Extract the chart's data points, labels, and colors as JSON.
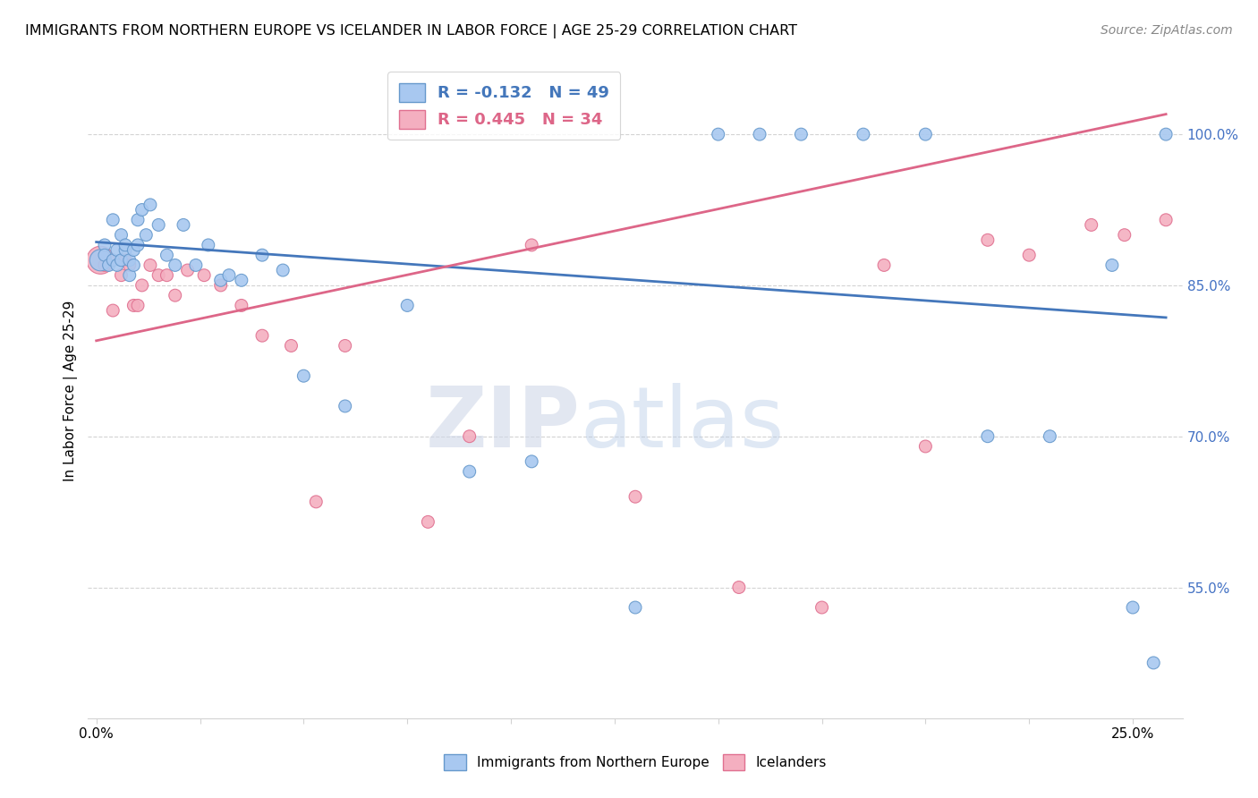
{
  "title": "IMMIGRANTS FROM NORTHERN EUROPE VS ICELANDER IN LABOR FORCE | AGE 25-29 CORRELATION CHART",
  "source": "Source: ZipAtlas.com",
  "ylabel": "In Labor Force | Age 25-29",
  "xmin": -0.002,
  "xmax": 0.262,
  "ymin": 0.42,
  "ymax": 1.07,
  "xticks": [
    0.0,
    0.025,
    0.05,
    0.075,
    0.1,
    0.125,
    0.15,
    0.175,
    0.2,
    0.225,
    0.25
  ],
  "xticklabels_show": {
    "0.0": "0.0%",
    "0.25": "25.0%"
  },
  "yticks": [
    0.55,
    0.7,
    0.85,
    1.0
  ],
  "yticklabels": [
    "55.0%",
    "70.0%",
    "85.0%",
    "100.0%"
  ],
  "blue_R": -0.132,
  "blue_N": 49,
  "pink_R": 0.445,
  "pink_N": 34,
  "blue_color": "#a8c8f0",
  "pink_color": "#f4afc0",
  "blue_edge_color": "#6699cc",
  "pink_edge_color": "#e07090",
  "blue_line_color": "#4477bb",
  "pink_line_color": "#dd6688",
  "watermark_color": "#d0dff0",
  "blue_x": [
    0.001,
    0.002,
    0.002,
    0.003,
    0.004,
    0.004,
    0.005,
    0.005,
    0.006,
    0.006,
    0.007,
    0.007,
    0.008,
    0.008,
    0.009,
    0.009,
    0.01,
    0.01,
    0.011,
    0.012,
    0.013,
    0.015,
    0.017,
    0.019,
    0.021,
    0.024,
    0.027,
    0.03,
    0.032,
    0.035,
    0.04,
    0.045,
    0.05,
    0.06,
    0.075,
    0.09,
    0.105,
    0.13,
    0.15,
    0.16,
    0.17,
    0.185,
    0.2,
    0.215,
    0.23,
    0.245,
    0.25,
    0.255,
    0.258
  ],
  "blue_y": [
    0.875,
    0.89,
    0.88,
    0.87,
    0.915,
    0.875,
    0.885,
    0.87,
    0.9,
    0.875,
    0.885,
    0.89,
    0.875,
    0.86,
    0.885,
    0.87,
    0.915,
    0.89,
    0.925,
    0.9,
    0.93,
    0.91,
    0.88,
    0.87,
    0.91,
    0.87,
    0.89,
    0.855,
    0.86,
    0.855,
    0.88,
    0.865,
    0.76,
    0.73,
    0.83,
    0.665,
    0.675,
    0.53,
    1.0,
    1.0,
    1.0,
    1.0,
    1.0,
    0.7,
    0.7,
    0.87,
    0.53,
    0.475,
    1.0
  ],
  "blue_sizes": [
    300,
    100,
    100,
    100,
    100,
    100,
    100,
    100,
    100,
    100,
    100,
    100,
    100,
    100,
    100,
    100,
    100,
    100,
    100,
    100,
    100,
    100,
    100,
    100,
    100,
    100,
    100,
    100,
    100,
    100,
    100,
    100,
    100,
    100,
    100,
    100,
    100,
    100,
    100,
    100,
    100,
    100,
    100,
    100,
    100,
    100,
    100,
    100,
    100
  ],
  "pink_x": [
    0.001,
    0.002,
    0.004,
    0.006,
    0.007,
    0.008,
    0.009,
    0.01,
    0.011,
    0.013,
    0.015,
    0.017,
    0.019,
    0.022,
    0.026,
    0.03,
    0.035,
    0.04,
    0.047,
    0.053,
    0.06,
    0.08,
    0.09,
    0.105,
    0.13,
    0.155,
    0.175,
    0.19,
    0.2,
    0.215,
    0.225,
    0.24,
    0.248,
    0.258
  ],
  "pink_y": [
    0.875,
    0.87,
    0.825,
    0.86,
    0.875,
    0.87,
    0.83,
    0.83,
    0.85,
    0.87,
    0.86,
    0.86,
    0.84,
    0.865,
    0.86,
    0.85,
    0.83,
    0.8,
    0.79,
    0.635,
    0.79,
    0.615,
    0.7,
    0.89,
    0.64,
    0.55,
    0.53,
    0.87,
    0.69,
    0.895,
    0.88,
    0.91,
    0.9,
    0.915
  ],
  "pink_sizes": [
    500,
    100,
    100,
    100,
    100,
    100,
    100,
    100,
    100,
    100,
    100,
    100,
    100,
    100,
    100,
    100,
    100,
    100,
    100,
    100,
    100,
    100,
    100,
    100,
    100,
    100,
    100,
    100,
    100,
    100,
    100,
    100,
    100,
    100
  ],
  "blue_line_x": [
    0.0,
    0.258
  ],
  "blue_line_y": [
    0.893,
    0.818
  ],
  "pink_line_x": [
    0.0,
    0.258
  ],
  "pink_line_y": [
    0.795,
    1.02
  ]
}
